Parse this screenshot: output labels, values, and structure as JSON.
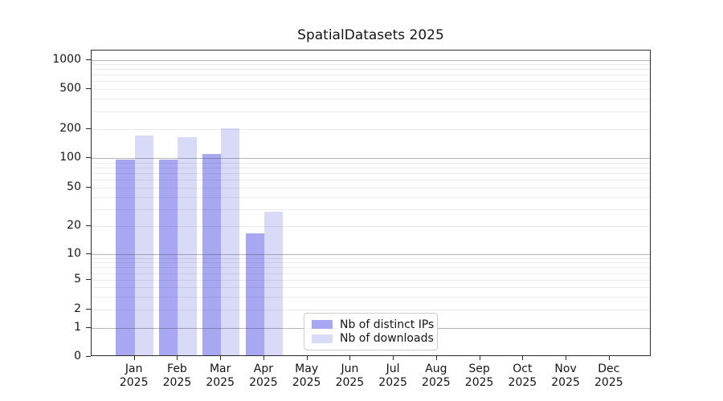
{
  "chart_data": {
    "type": "bar",
    "title": "SpatialDatasets 2025",
    "categories": [
      "Jan",
      "Feb",
      "Mar",
      "Apr",
      "May",
      "Jun",
      "Jul",
      "Aug",
      "Sep",
      "Oct",
      "Nov",
      "Dec"
    ],
    "year_label": "2025",
    "series": [
      {
        "name": "Nb of distinct IPs",
        "color": "#a8a8f2",
        "values": [
          93,
          93,
          106,
          16,
          0,
          0,
          0,
          0,
          0,
          0,
          0,
          0
        ]
      },
      {
        "name": "Nb of downloads",
        "color": "#d9d9f8",
        "values": [
          165,
          159,
          196,
          27,
          0,
          0,
          0,
          0,
          0,
          0,
          0,
          0
        ]
      }
    ],
    "xlabel": "",
    "ylabel": "",
    "yscale": "symlog",
    "yticks": [
      0,
      1,
      2,
      5,
      10,
      20,
      50,
      100,
      200,
      500,
      1000
    ],
    "ylim": [
      0,
      1230
    ],
    "grid": "horizontal major and minor gridlines drawn over bars",
    "legend_position": "inside lower-center-left",
    "colors": {
      "major_grid": "#b4b4b4",
      "minor_grid": "#ebebeb",
      "spine": "#2b2b2b",
      "background": "#ffffff"
    }
  }
}
